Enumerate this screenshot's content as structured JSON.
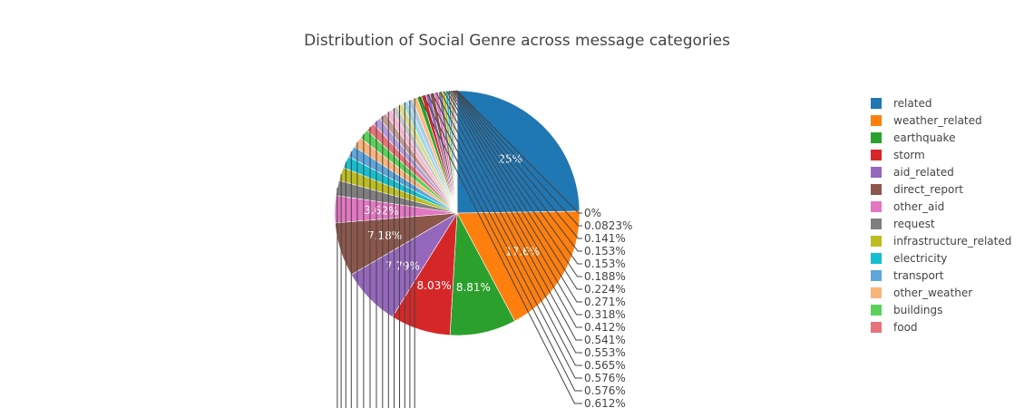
{
  "chart_data": {
    "type": "pie",
    "title": "Distribution of Social Genre across message categories",
    "legend_position": "right",
    "slices": [
      {
        "label": "related",
        "percent": 25,
        "display": "25%",
        "color": "#1f77b4"
      },
      {
        "label": "weather_related",
        "percent": 17.6,
        "display": "17.6%",
        "color": "#ff7f0e"
      },
      {
        "label": "earthquake",
        "percent": 8.81,
        "display": "8.81%",
        "color": "#2ca02c"
      },
      {
        "label": "storm",
        "percent": 8.03,
        "display": "8.03%",
        "color": "#d62728"
      },
      {
        "label": "aid_related",
        "percent": 7.79,
        "display": "7.79%",
        "color": "#9467bd"
      },
      {
        "label": "direct_report",
        "percent": 7.18,
        "display": "7.18%",
        "color": "#8c564b"
      },
      {
        "label": "other_aid",
        "percent": 3.62,
        "display": "3.62%",
        "color": "#e377c2"
      },
      {
        "label": "request",
        "percent": 2.0,
        "display": "",
        "color": "#7f7f7f"
      },
      {
        "label": "infrastructure_related",
        "percent": 1.8,
        "display": "",
        "color": "#bcbd22"
      },
      {
        "label": "electricity",
        "percent": 1.6,
        "display": "",
        "color": "#17becf"
      },
      {
        "label": "transport",
        "percent": 1.5,
        "display": "",
        "color": "#5da5da"
      },
      {
        "label": "other_weather",
        "percent": 1.4,
        "display": "",
        "color": "#f9b47a"
      },
      {
        "label": "buildings",
        "percent": 1.3,
        "display": "",
        "color": "#5ad15a"
      },
      {
        "label": "food",
        "percent": 1.2,
        "display": "",
        "color": "#e8737a"
      },
      {
        "label": "",
        "percent": 1.1,
        "display": "",
        "color": "#b39ddb"
      },
      {
        "label": "",
        "percent": 1.0,
        "display": "",
        "color": "#c49c94"
      },
      {
        "label": "",
        "percent": 0.9,
        "display": "",
        "color": "#f7b6d2"
      },
      {
        "label": "",
        "percent": 0.85,
        "display": "",
        "color": "#c7c7c7"
      },
      {
        "label": "",
        "percent": 0.8,
        "display": "",
        "color": "#dbdb8d"
      },
      {
        "label": "",
        "percent": 0.75,
        "display": "",
        "color": "#9edae5"
      },
      {
        "label": "",
        "percent": 0.7,
        "display": "",
        "color": "#aec7e8"
      },
      {
        "label": "",
        "percent": 0.65,
        "display": "",
        "color": "#ffbb78"
      },
      {
        "label": "",
        "percent": 0.612,
        "display": "0.612%",
        "color": "#2ca02c"
      },
      {
        "label": "",
        "percent": 0.576,
        "display": "0.576%",
        "color": "#d62728"
      },
      {
        "label": "",
        "percent": 0.576,
        "display": "0.576%",
        "color": "#9467bd"
      },
      {
        "label": "",
        "percent": 0.565,
        "display": "0.565%",
        "color": "#8c564b"
      },
      {
        "label": "",
        "percent": 0.553,
        "display": "0.553%",
        "color": "#e377c2"
      },
      {
        "label": "",
        "percent": 0.541,
        "display": "0.541%",
        "color": "#7f7f7f"
      },
      {
        "label": "",
        "percent": 0.412,
        "display": "0.412%",
        "color": "#bcbd22"
      },
      {
        "label": "",
        "percent": 0.318,
        "display": "0.318%",
        "color": "#17becf"
      },
      {
        "label": "",
        "percent": 0.271,
        "display": "0.271%",
        "color": "#1f77b4"
      },
      {
        "label": "",
        "percent": 0.224,
        "display": "0.224%",
        "color": "#ff7f0e"
      },
      {
        "label": "",
        "percent": 0.188,
        "display": "0.188%",
        "color": "#2ca02c"
      },
      {
        "label": "",
        "percent": 0.153,
        "display": "0.153%",
        "color": "#d62728"
      },
      {
        "label": "",
        "percent": 0.153,
        "display": "0.153%",
        "color": "#9467bd"
      },
      {
        "label": "",
        "percent": 0.141,
        "display": "0.141%",
        "color": "#8c564b"
      },
      {
        "label": "",
        "percent": 0.0823,
        "display": "0.0823%",
        "color": "#e377c2"
      },
      {
        "label": "",
        "percent": 0,
        "display": "0%",
        "color": "#7f7f7f"
      }
    ]
  }
}
